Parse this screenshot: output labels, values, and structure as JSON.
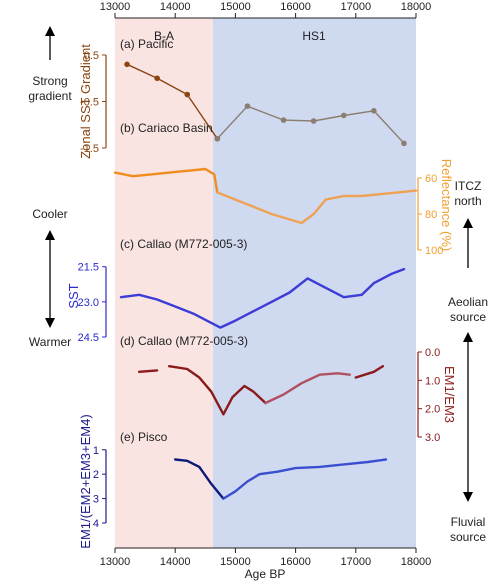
{
  "chart_data": {
    "type": "line",
    "x_axis": {
      "label": "Age BP",
      "range": [
        13000,
        18000
      ],
      "ticks": [
        13000,
        14000,
        15000,
        16000,
        17000,
        18000
      ],
      "tick_labels": [
        "13000",
        "14000",
        "15000",
        "16000",
        "17000",
        "18000"
      ]
    },
    "intervals": [
      {
        "label": "B-A",
        "from": 13000,
        "to": 14700,
        "color": "#f9e4e2"
      },
      {
        "label": "HS1",
        "from": 14700,
        "to": 18000,
        "color": "#cfdaf0"
      }
    ],
    "left_annotations": [
      {
        "text": "Strong",
        "text2": "gradient"
      },
      {
        "text": "Cooler",
        "text2": ""
      },
      {
        "text": "Warmer",
        "text2": ""
      }
    ],
    "right_annotations": [
      {
        "text": "ITCZ",
        "text2": "north"
      },
      {
        "text": "Aeolian",
        "text2": "source"
      },
      {
        "text": "Fluvial",
        "text2": "source"
      }
    ],
    "panels": [
      {
        "id": "a",
        "label": "(a) Pacific",
        "ylabel": "Zonal SST Gradient",
        "axis_side": "left",
        "axis_color": "#8b4513",
        "ylim": [
          0.5,
          -1.5
        ],
        "ticks": [
          0.5,
          -0.5,
          -1.5
        ],
        "tick_labels": [
          "0.5",
          "-0.5",
          "-1.5"
        ],
        "series": [
          {
            "color": "#8b4513",
            "x": [
              13200,
              13700,
              14200,
              14700
            ],
            "y": [
              0.3,
              0.0,
              -0.35,
              -1.3
            ]
          },
          {
            "color": "#8b7d70",
            "x": [
              14700,
              15200,
              15800,
              16300,
              16800,
              17300,
              17800
            ],
            "y": [
              -1.3,
              -0.6,
              -0.9,
              -0.92,
              -0.8,
              -0.7,
              -1.4
            ]
          }
        ]
      },
      {
        "id": "b",
        "label": "(b) Cariaco Basin",
        "ylabel": "Reflectance (%)",
        "axis_side": "right",
        "axis_color": "#f0a030",
        "ylim": [
          50,
          100
        ],
        "ticks": [
          60,
          80,
          100
        ],
        "tick_labels": [
          "60",
          "80",
          "100"
        ],
        "series": [
          {
            "color": "#f08c1e",
            "x": [
              13000,
              13300,
              13600,
              13900,
              14200,
              14500,
              14650,
              14700
            ],
            "y": [
              57,
              59,
              58,
              57,
              56,
              55,
              58,
              68
            ]
          },
          {
            "color": "#eea254",
            "x": [
              14700,
              15000,
              15300,
              15600,
              15900,
              16100,
              16300,
              16500,
              16800,
              17100,
              17400,
              17700,
              18000
            ],
            "y": [
              68,
              72,
              76,
              80,
              83,
              85,
              80,
              72,
              70,
              70,
              69,
              68,
              67
            ]
          }
        ]
      },
      {
        "id": "c",
        "label": "(c) Callao (M772-005-3)",
        "ylabel": "SST",
        "axis_side": "left",
        "axis_color": "#2a2ad0",
        "ylim": [
          21.0,
          24.5
        ],
        "ticks": [
          21.5,
          23.0,
          24.5
        ],
        "tick_labels": [
          "21.5",
          "23.0",
          "24.5"
        ],
        "series": [
          {
            "color": "#3c3cd6",
            "x": [
              13100,
              13400,
              13700,
              14000,
              14300,
              14600,
              14750,
              15000,
              15300,
              15600,
              15900,
              16200,
              16500,
              16800,
              17100,
              17300,
              17600,
              17800
            ],
            "y": [
              22.8,
              22.7,
              22.9,
              23.2,
              23.5,
              23.9,
              24.1,
              23.8,
              23.4,
              23.0,
              22.6,
              22.0,
              22.4,
              22.8,
              22.7,
              22.2,
              21.8,
              21.6
            ]
          }
        ]
      },
      {
        "id": "d",
        "label": "(d) Callao (M772-005-3)",
        "ylabel": "EM1/EM3",
        "axis_side": "right",
        "axis_color": "#8b1a1a",
        "ylim": [
          0.0,
          3.0
        ],
        "ticks": [
          0.0,
          1.0,
          2.0,
          3.0
        ],
        "tick_labels": [
          "0.0",
          "1.0",
          "2.0",
          "3.0"
        ],
        "series": [
          {
            "color": "#8b1a1a",
            "x": [
              13400,
              13700
            ],
            "y": [
              0.7,
              0.65
            ]
          },
          {
            "color": "#8b1a1a",
            "x": [
              13900,
              14200,
              14400,
              14600,
              14800,
              14950,
              15150,
              15300,
              15500
            ],
            "y": [
              0.5,
              0.6,
              0.9,
              1.4,
              2.2,
              1.6,
              1.2,
              1.4,
              1.8
            ]
          },
          {
            "color": "#b05060",
            "x": [
              15500,
              15800,
              16100,
              16400,
              16700,
              16900
            ],
            "y": [
              1.8,
              1.5,
              1.1,
              0.8,
              0.75,
              0.8
            ]
          },
          {
            "color": "#8b1a1a",
            "x": [
              17000,
              17300,
              17450
            ],
            "y": [
              0.9,
              0.7,
              0.5
            ]
          }
        ]
      },
      {
        "id": "e",
        "label": "(e) Pisco",
        "ylabel": "EM1/(EM2+EM3+EM4)",
        "axis_side": "left",
        "axis_color": "#1a1a8b",
        "ylim": [
          0.6,
          4.0
        ],
        "ticks": [
          1,
          2,
          3,
          4
        ],
        "tick_labels": [
          "1",
          "2",
          "3",
          "4"
        ],
        "series": [
          {
            "color": "#0d1a7a",
            "x": [
              14000,
              14200,
              14400,
              14600,
              14800
            ],
            "y": [
              1.4,
              1.45,
              1.7,
              2.4,
              3.0
            ]
          },
          {
            "color": "#3a4fd0",
            "x": [
              14800,
              15000,
              15200,
              15400,
              15700,
              16000,
              16400,
              16800,
              17200,
              17500
            ],
            "y": [
              3.0,
              2.7,
              2.3,
              2.0,
              1.9,
              1.75,
              1.7,
              1.6,
              1.5,
              1.4
            ]
          }
        ]
      }
    ]
  }
}
